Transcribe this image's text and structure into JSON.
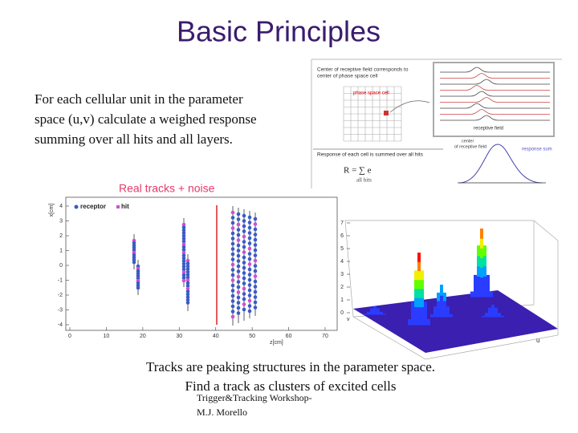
{
  "title": "Basic Principles",
  "intro": [
    "For each cellular unit  in the parameter",
    "space (u,v) calculate a weighed response",
    "summing over all hits and all layers."
  ],
  "diagram": {
    "center_note": [
      "Center of receptive field corresponds to",
      "center of phase space cell"
    ],
    "phase_cell": "phase space cell",
    "receptive_field": "receptive field",
    "center_label": [
      "center",
      "of receptive field"
    ],
    "response_sum": "response sum",
    "response_note": "Response of each cell is summed over all hits",
    "all_hits": "all hits"
  },
  "plot2d": {
    "title": "Real tracks + noise",
    "ylabel": "x[cm]",
    "xlabel": "z[cm]",
    "legend": [
      "receptor",
      "hit"
    ],
    "xticks": [
      0,
      10,
      20,
      30,
      40,
      50,
      60,
      70
    ],
    "yticks": [
      -4,
      -3,
      -2,
      -1,
      0,
      1,
      2,
      3,
      4
    ]
  },
  "plot3d": {
    "zticks": [
      0,
      1,
      2,
      3,
      4,
      5,
      6,
      7
    ],
    "u_label": "u",
    "v_label": "v"
  },
  "caption": [
    "Tracks are peaking structures in the parameter space.",
    "Find a track as clusters of excited cells"
  ],
  "footer": [
    "Trigger&Tracking Workshop-",
    "M.J. Morello"
  ]
}
